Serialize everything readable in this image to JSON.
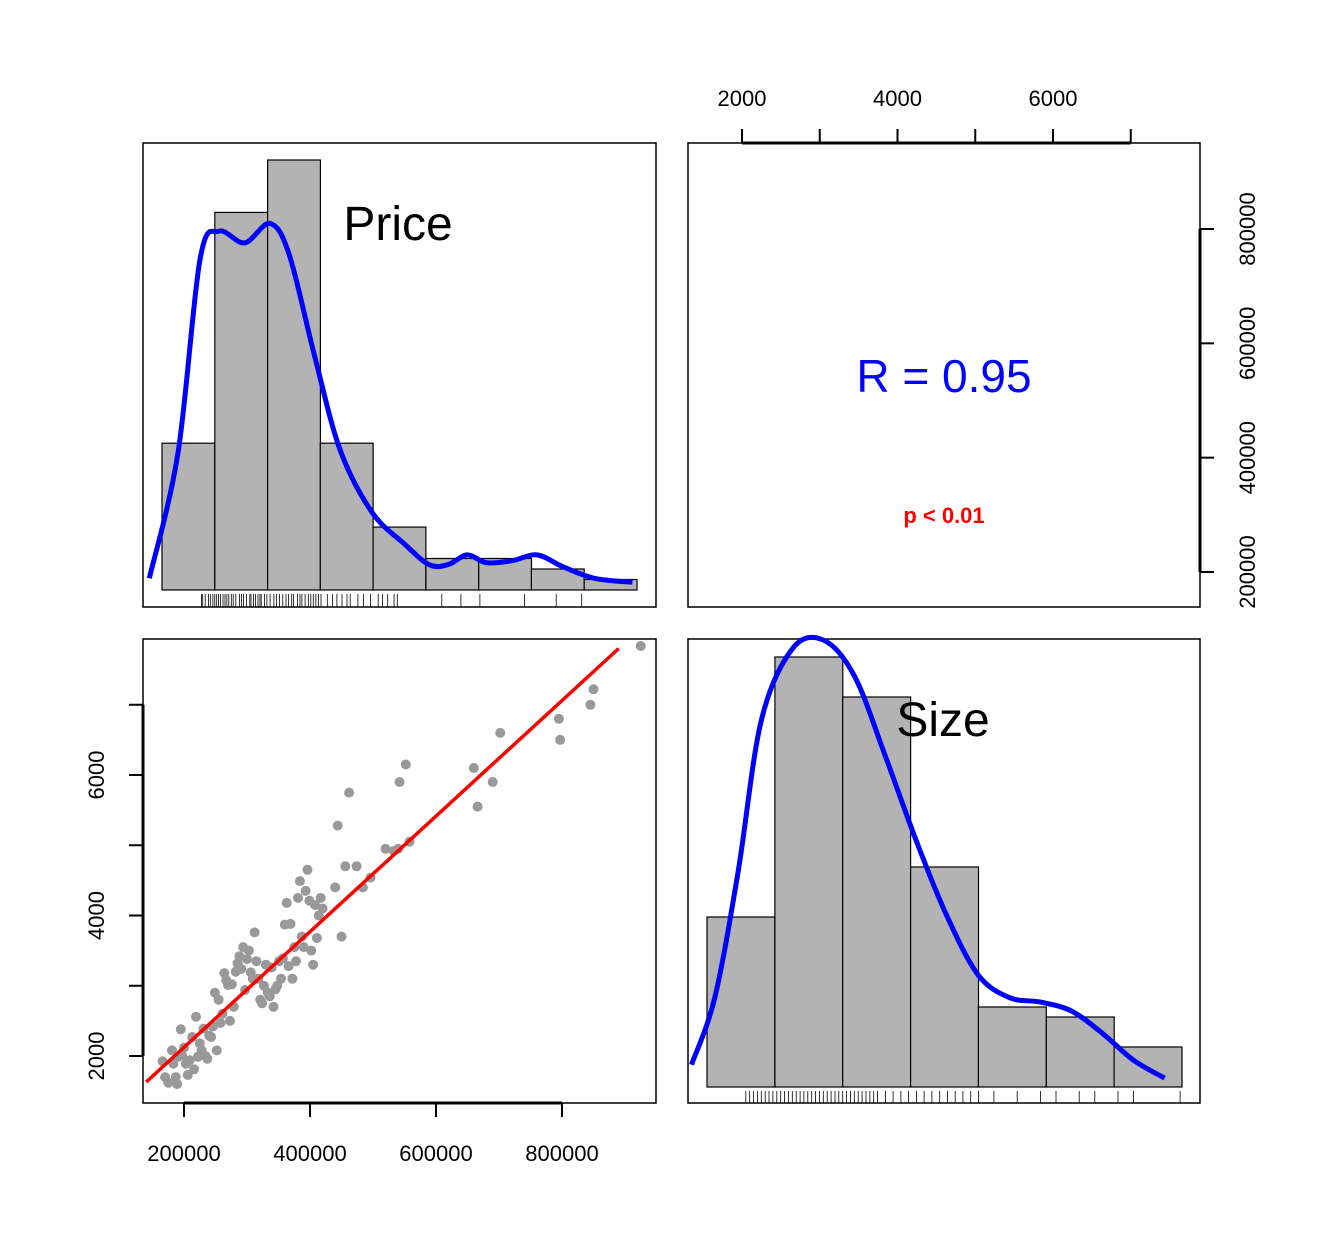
{
  "colors": {
    "bar_fill": "#b3b3b3",
    "density": "#0000ff",
    "fit_line": "#ff0000",
    "points": "#999999",
    "r_text": "#0000ff",
    "p_text": "#ff0000"
  },
  "panels": {
    "price_label": "Price",
    "size_label": "Size",
    "r_text": "R = 0.95",
    "p_text": "p < 0.01"
  },
  "chart_data": [
    {
      "type": "bar",
      "panel": "histogram",
      "variable": "Price",
      "bin_edges": [
        150000,
        233000,
        316000,
        399000,
        482000,
        565000,
        648000,
        731000,
        814000,
        897000
      ],
      "counts": [
        14,
        36,
        41,
        14,
        6,
        3,
        3,
        2,
        1
      ],
      "density_curve": [
        [
          130000,
          0.03
        ],
        [
          175000,
          0.35
        ],
        [
          210000,
          0.85
        ],
        [
          240000,
          0.92
        ],
        [
          280000,
          0.89
        ],
        [
          320000,
          0.94
        ],
        [
          350000,
          0.86
        ],
        [
          390000,
          0.6
        ],
        [
          430000,
          0.36
        ],
        [
          480000,
          0.2
        ],
        [
          530000,
          0.12
        ],
        [
          570000,
          0.065
        ],
        [
          600000,
          0.065
        ],
        [
          630000,
          0.09
        ],
        [
          660000,
          0.07
        ],
        [
          700000,
          0.075
        ],
        [
          740000,
          0.09
        ],
        [
          780000,
          0.06
        ],
        [
          830000,
          0.03
        ],
        [
          890000,
          0.02
        ]
      ],
      "rug": [
        212000,
        214000,
        218000,
        223000,
        226000,
        230000,
        233000,
        236000,
        239000,
        242000,
        246000,
        249000,
        252000,
        255000,
        259000,
        262000,
        266000,
        272000,
        275000,
        278000,
        283000,
        288000,
        290000,
        294000,
        297000,
        301000,
        304000,
        306000,
        311000,
        315000,
        320000,
        326000,
        330000,
        335000,
        340000,
        345000,
        349000,
        354000,
        357000,
        363000,
        367000,
        370000,
        375000,
        380000,
        384000,
        388000,
        392000,
        396000,
        400000,
        410000,
        418000,
        425000,
        433000,
        441000,
        446000,
        458000,
        467000,
        478000,
        490000,
        497000,
        505000,
        515000,
        520000,
        590000,
        620000,
        650000,
        720000,
        770000,
        810000
      ]
    },
    {
      "type": "bar",
      "panel": "histogram",
      "variable": "Size",
      "bin_edges": [
        1500,
        2375,
        3250,
        4125,
        5000,
        5875,
        6750,
        7625
      ],
      "counts": [
        17,
        43,
        39,
        22,
        8,
        7,
        4
      ],
      "density_curve": [
        [
          1300,
          0.05
        ],
        [
          1600,
          0.2
        ],
        [
          1900,
          0.48
        ],
        [
          2200,
          0.82
        ],
        [
          2600,
          0.98
        ],
        [
          3000,
          1.0
        ],
        [
          3400,
          0.92
        ],
        [
          3800,
          0.74
        ],
        [
          4200,
          0.55
        ],
        [
          4600,
          0.38
        ],
        [
          5000,
          0.25
        ],
        [
          5400,
          0.2
        ],
        [
          5800,
          0.19
        ],
        [
          6200,
          0.17
        ],
        [
          6600,
          0.12
        ],
        [
          7000,
          0.06
        ],
        [
          7400,
          0.02
        ]
      ],
      "rug": [
        2000,
        2050,
        2100,
        2150,
        2200,
        2250,
        2300,
        2350,
        2400,
        2450,
        2500,
        2550,
        2600,
        2650,
        2700,
        2750,
        2800,
        2850,
        2900,
        2950,
        3000,
        3050,
        3100,
        3150,
        3200,
        3250,
        3300,
        3350,
        3400,
        3450,
        3500,
        3550,
        3600,
        3650,
        3700,
        3800,
        3900,
        4000,
        4100,
        4200,
        4300,
        4400,
        4500,
        4600,
        4700,
        4800,
        4900,
        5000,
        5200,
        5500,
        5800,
        6000,
        6300,
        6500,
        6800,
        7000,
        7600
      ]
    },
    {
      "type": "scatter",
      "panel": "scatter",
      "x_variable": "Price",
      "y_variable": "Size",
      "x_ticks": [
        200000,
        400000,
        600000,
        800000
      ],
      "x_tick_labels": [
        "200000",
        "400000",
        "600000",
        "800000"
      ],
      "y_ticks": [
        2000,
        4000,
        6000
      ],
      "y_tick_labels": [
        "2000",
        "4000",
        "6000"
      ],
      "xlim": [
        140000,
        950000
      ],
      "ylim": [
        1300,
        7800
      ],
      "points": [
        [
          166000,
          1925
        ],
        [
          170000,
          1700
        ],
        [
          175000,
          1620
        ],
        [
          181000,
          2080
        ],
        [
          183000,
          1890
        ],
        [
          187000,
          1700
        ],
        [
          189000,
          1600
        ],
        [
          191000,
          1990
        ],
        [
          195000,
          2380
        ],
        [
          197000,
          2010
        ],
        [
          200000,
          2120
        ],
        [
          203000,
          1890
        ],
        [
          206000,
          1730
        ],
        [
          209000,
          1940
        ],
        [
          213000,
          2270
        ],
        [
          216000,
          1810
        ],
        [
          219000,
          2560
        ],
        [
          222000,
          1990
        ],
        [
          225000,
          2180
        ],
        [
          228000,
          2080
        ],
        [
          231000,
          2390
        ],
        [
          234000,
          2000
        ],
        [
          237000,
          1960
        ],
        [
          240000,
          2290
        ],
        [
          243000,
          2270
        ],
        [
          246000,
          2420
        ],
        [
          249000,
          2900
        ],
        [
          252000,
          2080
        ],
        [
          255000,
          2800
        ],
        [
          258000,
          2470
        ],
        [
          261000,
          2600
        ],
        [
          264000,
          3180
        ],
        [
          267000,
          3080
        ],
        [
          270000,
          3010
        ],
        [
          273000,
          2500
        ],
        [
          276000,
          3020
        ],
        [
          279000,
          2700
        ],
        [
          282000,
          3200
        ],
        [
          285000,
          3320
        ],
        [
          288000,
          3420
        ],
        [
          291000,
          3240
        ],
        [
          294000,
          3550
        ],
        [
          297000,
          2940
        ],
        [
          300000,
          3380
        ],
        [
          303000,
          3500
        ],
        [
          306000,
          3190
        ],
        [
          309000,
          3100
        ],
        [
          312000,
          3760
        ],
        [
          315000,
          3350
        ],
        [
          318000,
          3100
        ],
        [
          321000,
          2800
        ],
        [
          324000,
          2750
        ],
        [
          327000,
          3000
        ],
        [
          330000,
          3300
        ],
        [
          333000,
          2900
        ],
        [
          336000,
          2850
        ],
        [
          339000,
          3260
        ],
        [
          342000,
          2700
        ],
        [
          345000,
          2950
        ],
        [
          348000,
          3000
        ],
        [
          351000,
          3350
        ],
        [
          354000,
          3100
        ],
        [
          357000,
          3390
        ],
        [
          360000,
          3870
        ],
        [
          363000,
          4180
        ],
        [
          366000,
          3280
        ],
        [
          369000,
          3880
        ],
        [
          372000,
          3100
        ],
        [
          375000,
          3550
        ],
        [
          378000,
          3350
        ],
        [
          381000,
          4250
        ],
        [
          384000,
          4490
        ],
        [
          387000,
          3700
        ],
        [
          390000,
          3550
        ],
        [
          393000,
          4350
        ],
        [
          396000,
          4650
        ],
        [
          399000,
          4210
        ],
        [
          402000,
          3500
        ],
        [
          405000,
          3300
        ],
        [
          408000,
          4150
        ],
        [
          411000,
          3680
        ],
        [
          414000,
          4000
        ],
        [
          417000,
          4250
        ],
        [
          420000,
          4100
        ],
        [
          440000,
          4400
        ],
        [
          444000,
          5280
        ],
        [
          450000,
          3700
        ],
        [
          456000,
          4700
        ],
        [
          462000,
          5750
        ],
        [
          474000,
          4700
        ],
        [
          484000,
          4400
        ],
        [
          496000,
          4540
        ],
        [
          520000,
          4950
        ],
        [
          533000,
          4920
        ],
        [
          540000,
          4950
        ],
        [
          542000,
          5900
        ],
        [
          552000,
          6150
        ],
        [
          558000,
          5050
        ],
        [
          660000,
          6100
        ],
        [
          666000,
          5550
        ],
        [
          690000,
          5900
        ],
        [
          702000,
          6600
        ],
        [
          795000,
          6800
        ],
        [
          797000,
          6500
        ],
        [
          845000,
          7000
        ],
        [
          850000,
          7220
        ],
        [
          925000,
          7950
        ]
      ],
      "fit_line": [
        [
          140000,
          1630
        ],
        [
          890000,
          7800
        ]
      ]
    },
    {
      "type": "table",
      "panel": "correlation",
      "r": 0.95,
      "p_value": "< 0.01",
      "top_axis_ticks": [
        2000,
        3000,
        4000,
        5000,
        6000,
        7000
      ],
      "top_axis_labels": [
        "2000",
        "",
        "4000",
        "",
        "6000",
        ""
      ],
      "right_axis_ticks": [
        200000,
        400000,
        600000,
        800000
      ],
      "right_axis_labels": [
        "200000",
        "400000",
        "600000",
        "800000"
      ]
    }
  ]
}
